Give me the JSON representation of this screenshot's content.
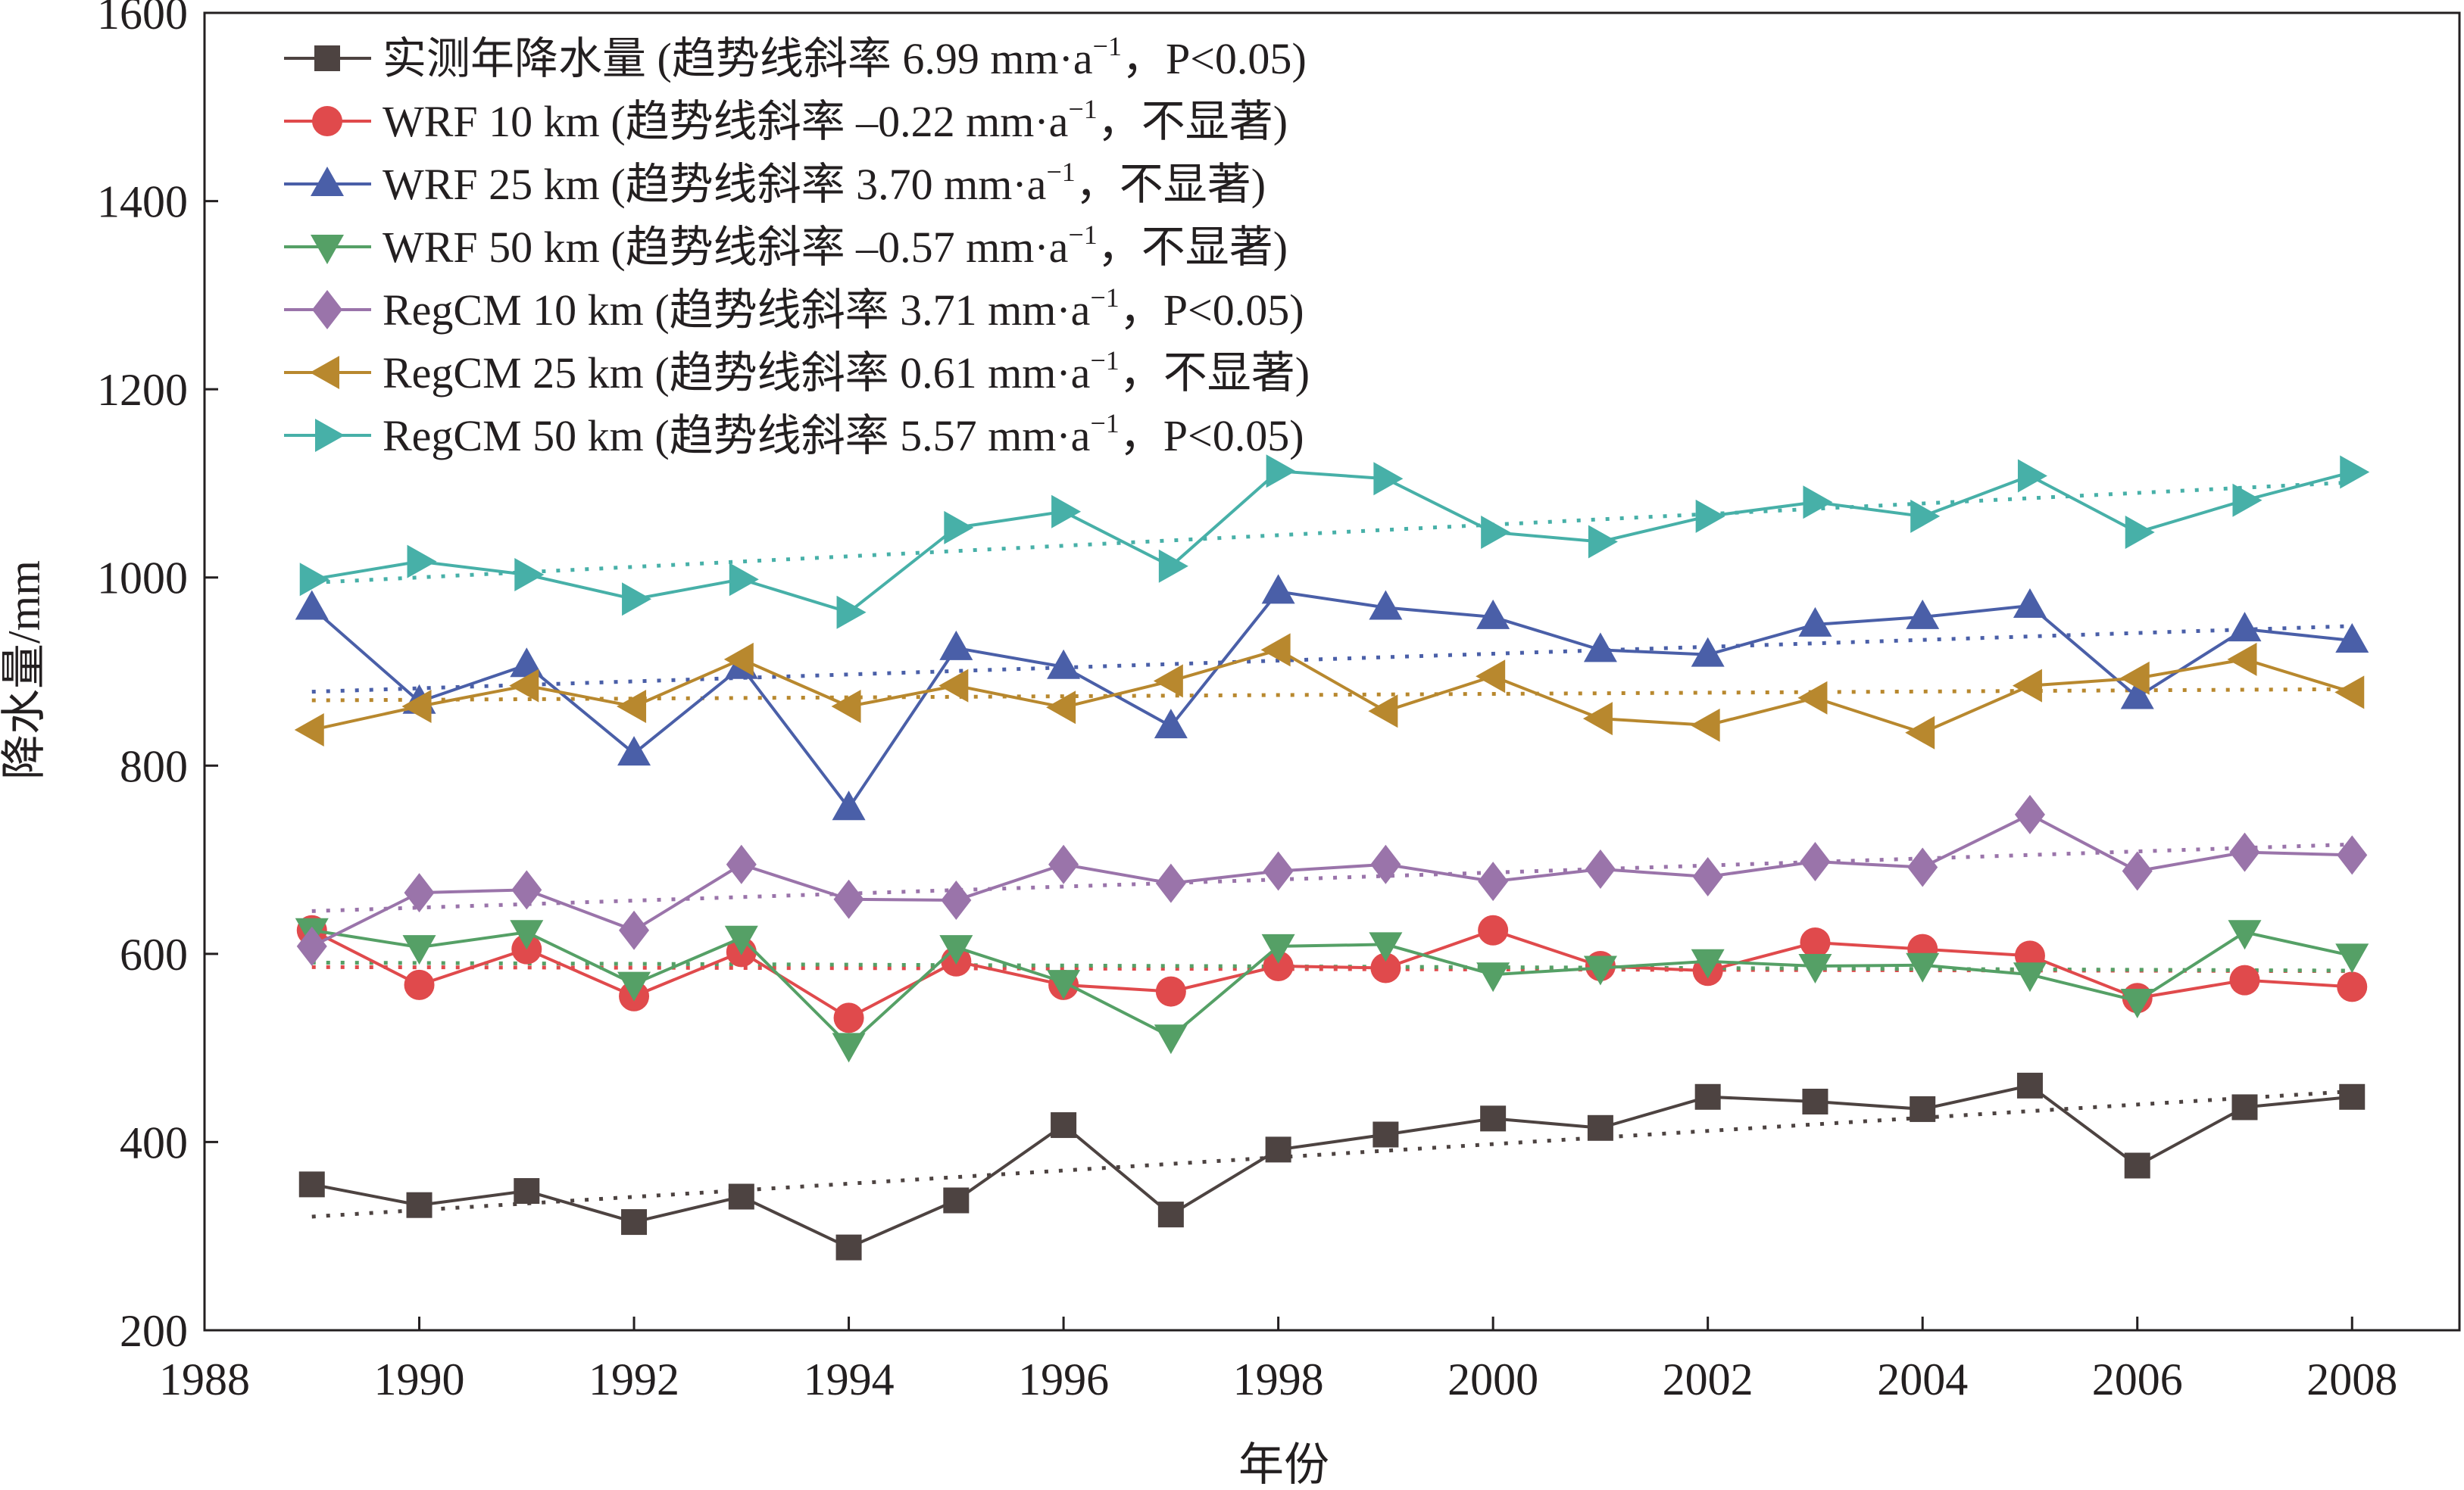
{
  "chart_data": {
    "type": "line",
    "title": "",
    "xlabel": "年份",
    "ylabel": "降水量/mm",
    "xlim": [
      1988,
      2009
    ],
    "ylim": [
      200,
      1600
    ],
    "xticks": [
      1988,
      1990,
      1992,
      1994,
      1996,
      1998,
      2000,
      2002,
      2004,
      2006,
      2008
    ],
    "yticks": [
      200,
      400,
      600,
      800,
      1000,
      1200,
      1400,
      1600
    ],
    "legend_position": "top-left",
    "x": [
      1989,
      1990,
      1991,
      1992,
      1993,
      1994,
      1995,
      1996,
      1997,
      1998,
      1999,
      2000,
      2001,
      2002,
      2003,
      2004,
      2005,
      2006,
      2007,
      2008
    ],
    "series": [
      {
        "name": "实测年降水量",
        "slope": "6.99",
        "sig": "P<0.05",
        "marker": "square",
        "color": "#4d4341",
        "values": [
          355,
          333,
          348,
          315,
          342,
          288,
          338,
          418,
          323,
          392,
          408,
          425,
          415,
          448,
          443,
          435,
          460,
          375,
          437,
          448
        ]
      },
      {
        "name": "WRF 10 km",
        "slope": "–0.22",
        "sig": "不显著",
        "marker": "circle",
        "color": "#e04a4c",
        "values": [
          625,
          567,
          605,
          555,
          602,
          532,
          592,
          567,
          560,
          587,
          585,
          625,
          587,
          582,
          612,
          605,
          598,
          553,
          572,
          565
        ]
      },
      {
        "name": "WRF 25 km",
        "slope": "3.70",
        "sig": "不显著",
        "marker": "triangle-up",
        "color": "#4a5fa8",
        "values": [
          968,
          868,
          907,
          813,
          905,
          755,
          925,
          905,
          842,
          985,
          968,
          958,
          923,
          918,
          950,
          958,
          970,
          873,
          945,
          933
        ]
      },
      {
        "name": "WRF 50 km",
        "slope": "–0.57",
        "sig": "不显著",
        "marker": "triangle-down",
        "color": "#55a066",
        "values": [
          625,
          607,
          623,
          568,
          617,
          503,
          607,
          570,
          512,
          608,
          610,
          578,
          585,
          592,
          587,
          588,
          578,
          550,
          623,
          598
        ]
      },
      {
        "name": "RegCM 10 km",
        "slope": "3.71",
        "sig": "P<0.05",
        "marker": "diamond",
        "color": "#9a74aa",
        "values": [
          608,
          665,
          668,
          625,
          695,
          658,
          657,
          695,
          675,
          688,
          695,
          677,
          690,
          682,
          698,
          692,
          748,
          688,
          708,
          705
        ]
      },
      {
        "name": "RegCM 25 km",
        "slope": "0.61",
        "sig": "不显著",
        "marker": "triangle-left",
        "color": "#b8882e",
        "values": [
          838,
          863,
          885,
          863,
          913,
          863,
          885,
          862,
          890,
          923,
          858,
          895,
          850,
          843,
          872,
          835,
          885,
          893,
          913,
          878
        ]
      },
      {
        "name": "RegCM 50 km",
        "slope": "5.57",
        "sig": "P<0.05",
        "marker": "triangle-right",
        "color": "#47b0a8",
        "values": [
          998,
          1017,
          1003,
          977,
          998,
          963,
          1053,
          1070,
          1012,
          1113,
          1105,
          1048,
          1038,
          1065,
          1080,
          1065,
          1108,
          1048,
          1082,
          1112
        ]
      }
    ],
    "legend_text": {
      "prefix": "(趋势线斜率 ",
      "unit": " mm·a",
      "sup": "−1",
      "sep": "，",
      "close": ")"
    }
  }
}
